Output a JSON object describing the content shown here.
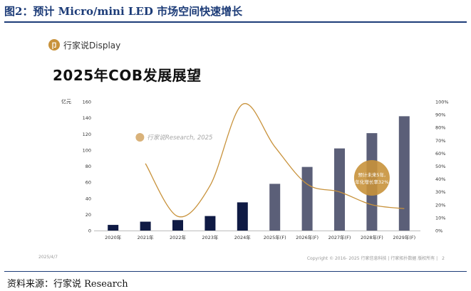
{
  "figure": {
    "title": "图2：预计 Micro/mini LED 市场空间快速增长",
    "source": "资料来源：行家说 Research"
  },
  "slide": {
    "brand": "行家说Display",
    "brand_logo_glyph": "卩",
    "title": "2025年COB发展展望",
    "footer_date": "2025/4/7",
    "footer_copyright": "Copyright © 2016- 2025 行家信息科技 | 行家拓扑数据 版权所有 |",
    "page_number": "2"
  },
  "chart_data": {
    "type": "bar",
    "categories": [
      "2020年",
      "2021年",
      "2022年",
      "2023年",
      "2024年",
      "2025年(F)",
      "2026年(F)",
      "2027年(F)",
      "2028年(F)",
      "2029年(F)"
    ],
    "series": [
      {
        "values": [
          7,
          11,
          13,
          18,
          35,
          58,
          79,
          102,
          121,
          142
        ]
      },
      {
        "type": "line",
        "axis": "right",
        "x": [
          1,
          2,
          3,
          4,
          5,
          6,
          7,
          8,
          9
        ],
        "values": [
          52,
          11,
          35,
          98,
          65,
          36,
          30,
          20,
          17
        ]
      }
    ],
    "ylabel": "亿元",
    "ylim": [
      0,
      160
    ],
    "yticks": [
      0,
      20,
      40,
      60,
      80,
      100,
      120,
      140,
      160
    ],
    "y2lim": [
      0,
      100
    ],
    "y2ticks": [
      "0%",
      "10%",
      "20%",
      "30%",
      "40%",
      "50%",
      "60%",
      "70%",
      "80%",
      "90%",
      "100%"
    ],
    "watermark": "行家说Research, 2025",
    "annotation": [
      "预计未来5年,",
      "年化增长率32%"
    ],
    "colors": {
      "actual_bar": "#0f1a44",
      "forecast_bar": "#5b5f78",
      "line": "#c8923b",
      "annotation_circle": "#c8923b"
    },
    "grid": false
  }
}
